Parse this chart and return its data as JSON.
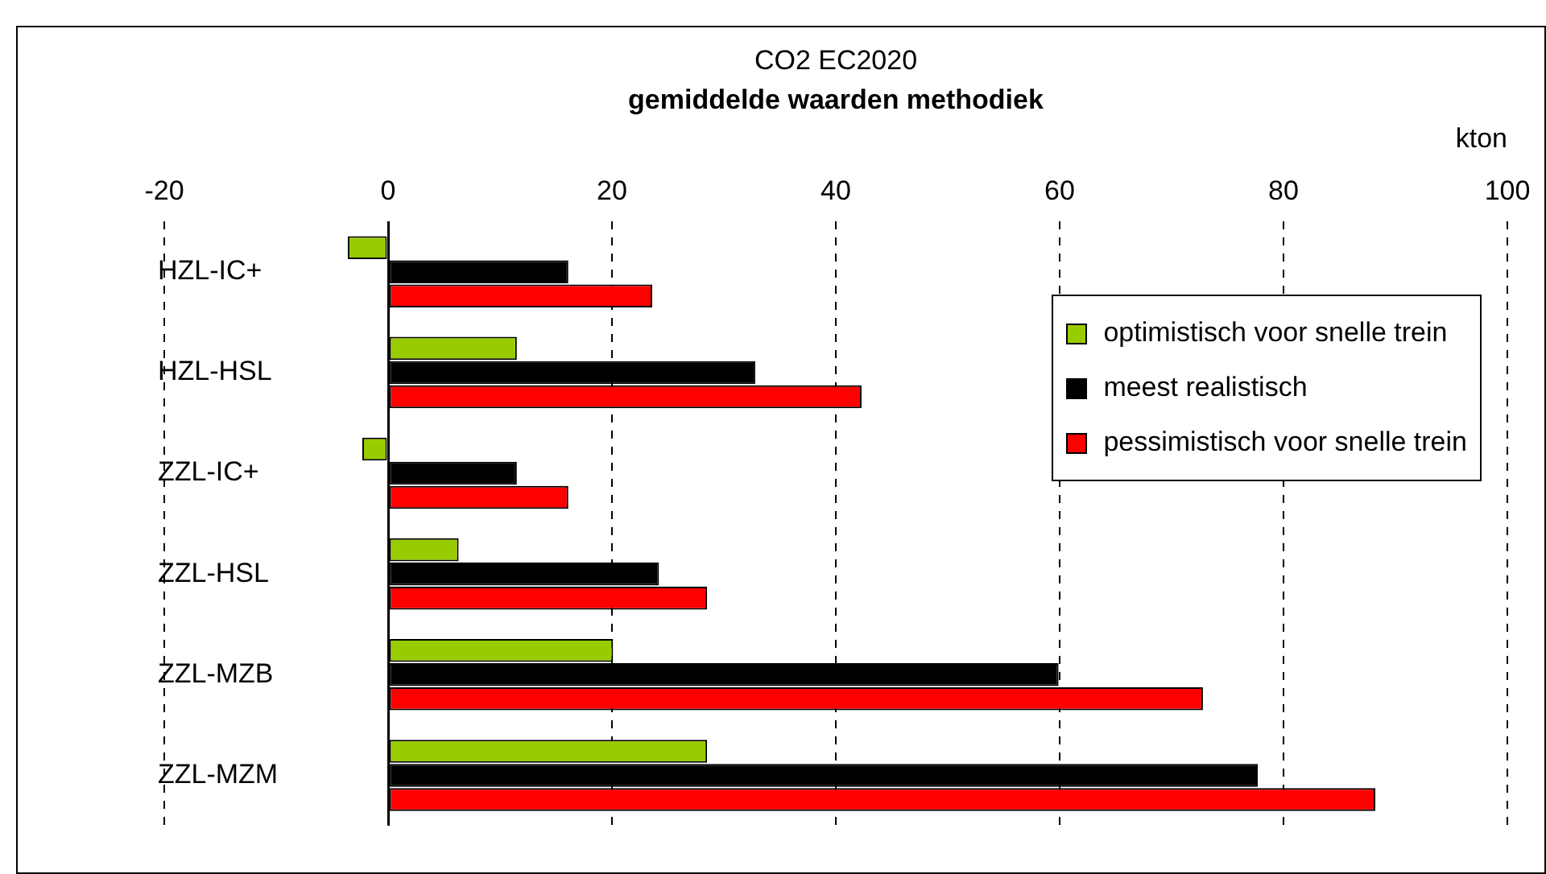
{
  "chart_data": {
    "type": "bar",
    "orientation": "horizontal",
    "title": "CO2 EC2020",
    "subtitle": "gemiddelde waarden methodiek",
    "xlabel": "kton",
    "categories": [
      "HZL-IC+",
      "HZL-HSL",
      "ZZL-IC+",
      "ZZL-HSL",
      "ZZL-MZB",
      "ZZL-MZM"
    ],
    "series": [
      {
        "name": "optimistisch voor snelle trein",
        "color": "#99cc00",
        "values": [
          -3.6,
          11.5,
          -2.3,
          6.3,
          20.1,
          28.5
        ]
      },
      {
        "name": "meest realistisch",
        "color": "#000000",
        "values": [
          16.1,
          32.8,
          11.5,
          24.2,
          59.9,
          77.7
        ]
      },
      {
        "name": "pessimistisch voor snelle trein",
        "color": "#ff0000",
        "values": [
          23.6,
          42.3,
          16.1,
          28.5,
          72.8,
          88.2
        ]
      }
    ],
    "xlim": [
      -20,
      100
    ],
    "xticks": [
      -20,
      0,
      20,
      40,
      60,
      80,
      100
    ],
    "grid": "x",
    "legend": "top right"
  }
}
